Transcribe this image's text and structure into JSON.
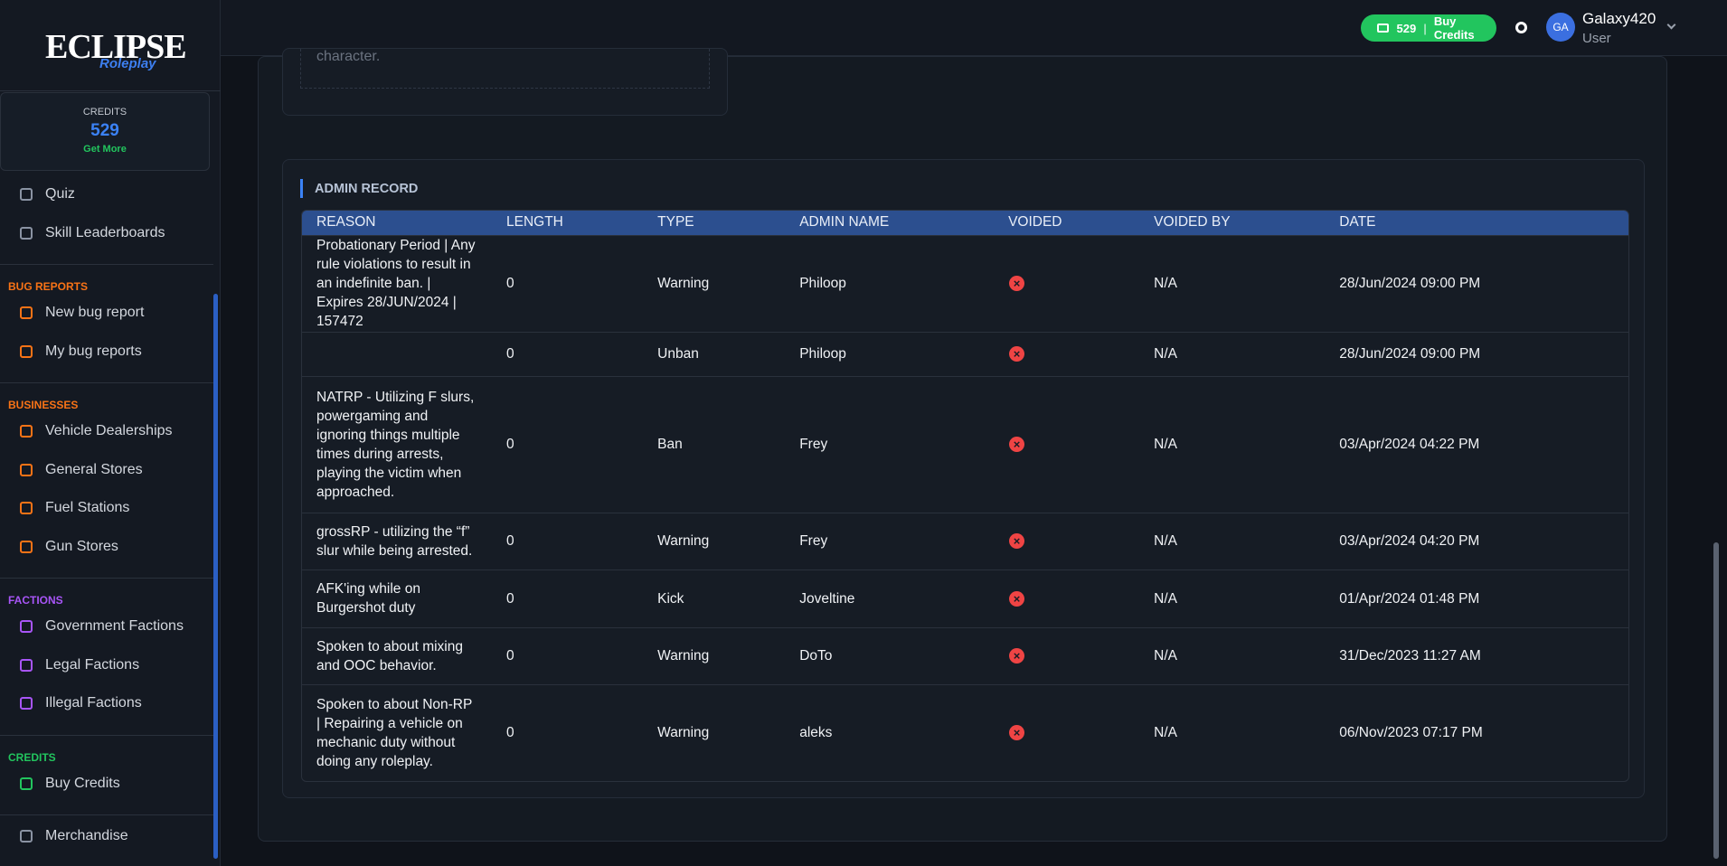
{
  "header": {
    "credits": "529",
    "buy_credits": "Buy Credits",
    "avatar": "GA",
    "username": "Galaxy420",
    "role": "User"
  },
  "sidebar": {
    "logo": "ECLIPSE",
    "logo_sub": "Roleplay",
    "credits_label": "CREDITS",
    "credits": "529",
    "get_more": "Get More",
    "groups": [
      {
        "heading": null,
        "items": [
          "Quiz",
          "Skill Leaderboards"
        ]
      },
      {
        "heading": "BUG REPORTS",
        "items": [
          "New bug report",
          "My bug reports"
        ]
      },
      {
        "heading": "BUSINESSES",
        "items": [
          "Vehicle Dealerships",
          "General Stores",
          "Fuel Stations",
          "Gun Stores"
        ]
      },
      {
        "heading": "FACTIONS",
        "items": [
          "Government Factions",
          "Legal Factions",
          "Illegal Factions"
        ]
      },
      {
        "heading": "CREDITS",
        "items": [
          "Buy Credits"
        ]
      },
      {
        "heading": null,
        "items": [
          "Merchandise"
        ]
      }
    ]
  },
  "content": {
    "partial_text": "character.",
    "admin_record": {
      "title": "ADMIN RECORD",
      "columns": [
        "REASON",
        "LENGTH",
        "TYPE",
        "ADMIN NAME",
        "VOIDED",
        "VOIDED BY",
        "DATE"
      ],
      "rows": [
        [
          "Probationary Period | Any rule violations to result in an indefinite ban. | Expires 28/JUN/2024 | 157472",
          "0",
          "Warning",
          "Philoop",
          null,
          "N/A",
          "28/Jun/2024 09:00 PM"
        ],
        [
          null,
          "0",
          "Unban",
          "Philoop",
          null,
          "N/A",
          "28/Jun/2024 09:00 PM"
        ],
        [
          "NATRP - Utilizing F slurs, powergaming and ignoring things multiple times during arrests, playing the victim when approached.",
          "0",
          "Ban",
          "Frey",
          null,
          "N/A",
          "03/Apr/2024 04:22 PM"
        ],
        [
          "grossRP - utilizing the “f” slur while being arrested.",
          "0",
          "Warning",
          "Frey",
          null,
          "N/A",
          "03/Apr/2024 04:20 PM"
        ],
        [
          "AFK'ing while on Burgershot duty",
          "0",
          "Kick",
          "Joveltine",
          null,
          "N/A",
          "01/Apr/2024 01:48 PM"
        ],
        [
          "Spoken to about mixing and OOC behavior.",
          "0",
          "Warning",
          "DoTo",
          null,
          "N/A",
          "31/Dec/2023 11:27 AM"
        ],
        [
          "Spoken to about Non-RP | Repairing a vehicle on mechanic duty without doing any roleplay.",
          "0",
          "Warning",
          "aleks",
          null,
          "N/A",
          "06/Nov/2023 07:17 PM"
        ]
      ]
    }
  }
}
